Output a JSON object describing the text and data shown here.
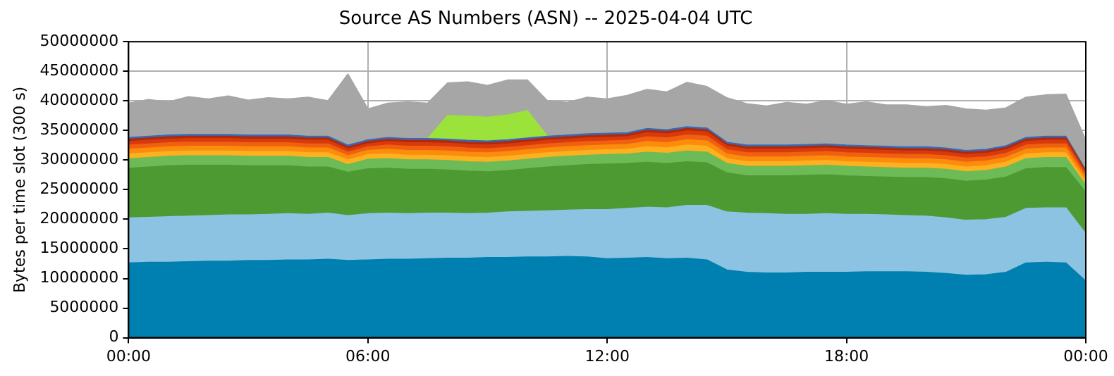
{
  "chart_data": {
    "type": "area",
    "title": "Source AS Numbers (ASN) -- 2025-04-04 UTC",
    "ylabel": "Bytes per time slot (300 s)",
    "stacked": true,
    "grid": true,
    "legend": false,
    "x": [
      0,
      0.5,
      1,
      1.5,
      2,
      2.5,
      3,
      3.5,
      4,
      4.5,
      5,
      5.5,
      6,
      6.5,
      7,
      7.5,
      8,
      8.5,
      9,
      9.5,
      10,
      10.5,
      11,
      11.5,
      12,
      12.5,
      13,
      13.5,
      14,
      14.5,
      15,
      15.5,
      16,
      16.5,
      17,
      17.5,
      18,
      18.5,
      19,
      19.5,
      20,
      20.5,
      21,
      21.5,
      22,
      22.5,
      23,
      23.5,
      24
    ],
    "xlim": [
      0,
      24
    ],
    "xticks": [
      {
        "value": 0,
        "label": "00:00"
      },
      {
        "value": 6,
        "label": "06:00"
      },
      {
        "value": 12,
        "label": "12:00"
      },
      {
        "value": 18,
        "label": "18:00"
      },
      {
        "value": 24,
        "label": "00:00"
      }
    ],
    "ylim": [
      0,
      50000000
    ],
    "yticks": [
      0,
      5000000,
      10000000,
      15000000,
      20000000,
      25000000,
      30000000,
      35000000,
      40000000,
      45000000,
      50000000
    ],
    "series": [
      {
        "color": "#0080b0",
        "values": [
          12600000,
          12700000,
          12700000,
          12800000,
          12900000,
          12900000,
          13000000,
          13000000,
          13100000,
          13100000,
          13200000,
          13000000,
          13100000,
          13200000,
          13200000,
          13300000,
          13400000,
          13400000,
          13500000,
          13500000,
          13600000,
          13600000,
          13700000,
          13600000,
          13300000,
          13400000,
          13500000,
          13300000,
          13400000,
          13100000,
          11400000,
          11000000,
          10900000,
          10900000,
          11000000,
          11000000,
          11000000,
          11100000,
          11100000,
          11100000,
          11000000,
          10800000,
          10500000,
          10600000,
          11000000,
          12600000,
          12700000,
          12600000,
          9500000
        ]
      },
      {
        "color": "#8cc3e2",
        "values": [
          7600000,
          7600000,
          7700000,
          7700000,
          7700000,
          7800000,
          7700000,
          7800000,
          7800000,
          7700000,
          7800000,
          7600000,
          7800000,
          7800000,
          7700000,
          7700000,
          7600000,
          7500000,
          7500000,
          7700000,
          7700000,
          7800000,
          7800000,
          8000000,
          8300000,
          8400000,
          8500000,
          8600000,
          8900000,
          9200000,
          9800000,
          10000000,
          10000000,
          9900000,
          9800000,
          9900000,
          9800000,
          9700000,
          9600000,
          9500000,
          9500000,
          9400000,
          9300000,
          9300000,
          9300000,
          9200000,
          9200000,
          9300000,
          8000000
        ]
      },
      {
        "color": "#4e9a32",
        "values": [
          8400000,
          8500000,
          8600000,
          8600000,
          8500000,
          8400000,
          8300000,
          8200000,
          8100000,
          8000000,
          7800000,
          7300000,
          7600000,
          7600000,
          7500000,
          7400000,
          7300000,
          7200000,
          7000000,
          7000000,
          7200000,
          7400000,
          7500000,
          7600000,
          7700000,
          7600000,
          7600000,
          7500000,
          7400000,
          7200000,
          6600000,
          6300000,
          6400000,
          6500000,
          6600000,
          6600000,
          6500000,
          6400000,
          6400000,
          6400000,
          6500000,
          6600000,
          6600000,
          6700000,
          6800000,
          6700000,
          6800000,
          6800000,
          7000000
        ]
      },
      {
        "color": "#6cbb56",
        "values": [
          1600000,
          1600000,
          1600000,
          1600000,
          1600000,
          1600000,
          1600000,
          1600000,
          1600000,
          1600000,
          1600000,
          1300000,
          1600000,
          1600000,
          1600000,
          1600000,
          1600000,
          1600000,
          1600000,
          1600000,
          1600000,
          1600000,
          1600000,
          1600000,
          1600000,
          1600000,
          1700000,
          1700000,
          1800000,
          1800000,
          1600000,
          1600000,
          1600000,
          1600000,
          1600000,
          1600000,
          1600000,
          1600000,
          1600000,
          1600000,
          1600000,
          1600000,
          1600000,
          1600000,
          1700000,
          1700000,
          1700000,
          1700000,
          1200000
        ]
      },
      {
        "color": "#fdb120",
        "values": [
          800000,
          800000,
          800000,
          800000,
          800000,
          800000,
          800000,
          800000,
          800000,
          800000,
          800000,
          800000,
          800000,
          800000,
          800000,
          800000,
          800000,
          800000,
          800000,
          800000,
          800000,
          800000,
          800000,
          800000,
          800000,
          800000,
          900000,
          900000,
          1000000,
          1000000,
          800000,
          800000,
          800000,
          800000,
          800000,
          800000,
          800000,
          800000,
          800000,
          800000,
          800000,
          800000,
          800000,
          800000,
          800000,
          800000,
          800000,
          800000,
          600000
        ]
      },
      {
        "color": "#fb8c0c",
        "values": [
          800000,
          800000,
          800000,
          800000,
          800000,
          800000,
          800000,
          800000,
          800000,
          800000,
          800000,
          700000,
          700000,
          800000,
          800000,
          800000,
          800000,
          800000,
          800000,
          800000,
          800000,
          800000,
          800000,
          800000,
          800000,
          800000,
          900000,
          900000,
          900000,
          900000,
          800000,
          800000,
          800000,
          800000,
          800000,
          800000,
          800000,
          800000,
          800000,
          800000,
          800000,
          800000,
          800000,
          800000,
          800000,
          800000,
          800000,
          800000,
          600000
        ]
      },
      {
        "color": "#f06010",
        "values": [
          700000,
          700000,
          700000,
          700000,
          700000,
          700000,
          700000,
          700000,
          700000,
          700000,
          700000,
          600000,
          600000,
          700000,
          700000,
          700000,
          700000,
          700000,
          700000,
          700000,
          700000,
          700000,
          700000,
          700000,
          700000,
          700000,
          800000,
          800000,
          800000,
          800000,
          700000,
          700000,
          700000,
          700000,
          700000,
          700000,
          700000,
          700000,
          700000,
          700000,
          700000,
          700000,
          700000,
          700000,
          700000,
          700000,
          700000,
          700000,
          500000
        ]
      },
      {
        "color": "#d93a0c",
        "values": [
          600000,
          600000,
          600000,
          600000,
          600000,
          600000,
          600000,
          600000,
          600000,
          600000,
          600000,
          500000,
          500000,
          600000,
          600000,
          600000,
          600000,
          600000,
          600000,
          600000,
          600000,
          600000,
          600000,
          600000,
          600000,
          600000,
          700000,
          700000,
          700000,
          700000,
          600000,
          600000,
          600000,
          600000,
          600000,
          600000,
          600000,
          600000,
          600000,
          600000,
          600000,
          600000,
          600000,
          600000,
          600000,
          600000,
          600000,
          600000,
          400000
        ]
      },
      {
        "color": "#b02a0a",
        "values": [
          400000,
          400000,
          400000,
          400000,
          400000,
          400000,
          400000,
          400000,
          400000,
          400000,
          400000,
          400000,
          400000,
          400000,
          400000,
          400000,
          400000,
          400000,
          400000,
          400000,
          400000,
          400000,
          400000,
          400000,
          400000,
          400000,
          400000,
          400000,
          400000,
          400000,
          400000,
          400000,
          400000,
          400000,
          400000,
          400000,
          400000,
          400000,
          400000,
          400000,
          400000,
          400000,
          400000,
          400000,
          400000,
          400000,
          400000,
          400000,
          300000
        ]
      },
      {
        "color": "#3a68c0",
        "values": [
          300000,
          300000,
          300000,
          300000,
          300000,
          300000,
          300000,
          300000,
          300000,
          300000,
          300000,
          300000,
          300000,
          300000,
          300000,
          300000,
          300000,
          300000,
          300000,
          300000,
          300000,
          300000,
          300000,
          300000,
          300000,
          300000,
          300000,
          300000,
          300000,
          300000,
          300000,
          300000,
          300000,
          300000,
          300000,
          300000,
          300000,
          300000,
          300000,
          300000,
          300000,
          300000,
          300000,
          300000,
          300000,
          300000,
          300000,
          300000,
          200000
        ]
      },
      {
        "color": "#9be23a",
        "values": [
          0,
          0,
          0,
          0,
          0,
          0,
          0,
          0,
          0,
          0,
          0,
          0,
          0,
          0,
          0,
          0,
          4000000,
          4100000,
          4000000,
          4200000,
          4600000,
          0,
          0,
          0,
          0,
          0,
          0,
          0,
          0,
          0,
          0,
          0,
          0,
          0,
          0,
          0,
          0,
          0,
          0,
          0,
          0,
          0,
          0,
          0,
          0,
          0,
          0,
          0,
          0
        ]
      },
      {
        "color": "#a6a6a6",
        "values": [
          5800000,
          6200000,
          5600000,
          6400000,
          6000000,
          6500000,
          5900000,
          6300000,
          6100000,
          6600000,
          6000000,
          12000000,
          5200000,
          5800000,
          6200000,
          6000000,
          5500000,
          5800000,
          5400000,
          5900000,
          5200000,
          6000000,
          5500000,
          6200000,
          5800000,
          6300000,
          6600000,
          6400000,
          7500000,
          7000000,
          7500000,
          7000000,
          6600000,
          7200000,
          6800000,
          7300000,
          6900000,
          7400000,
          7000000,
          7100000,
          6800000,
          7200000,
          7000000,
          6600000,
          6400000,
          6800000,
          7000000,
          7100000,
          5000000
        ]
      }
    ]
  }
}
